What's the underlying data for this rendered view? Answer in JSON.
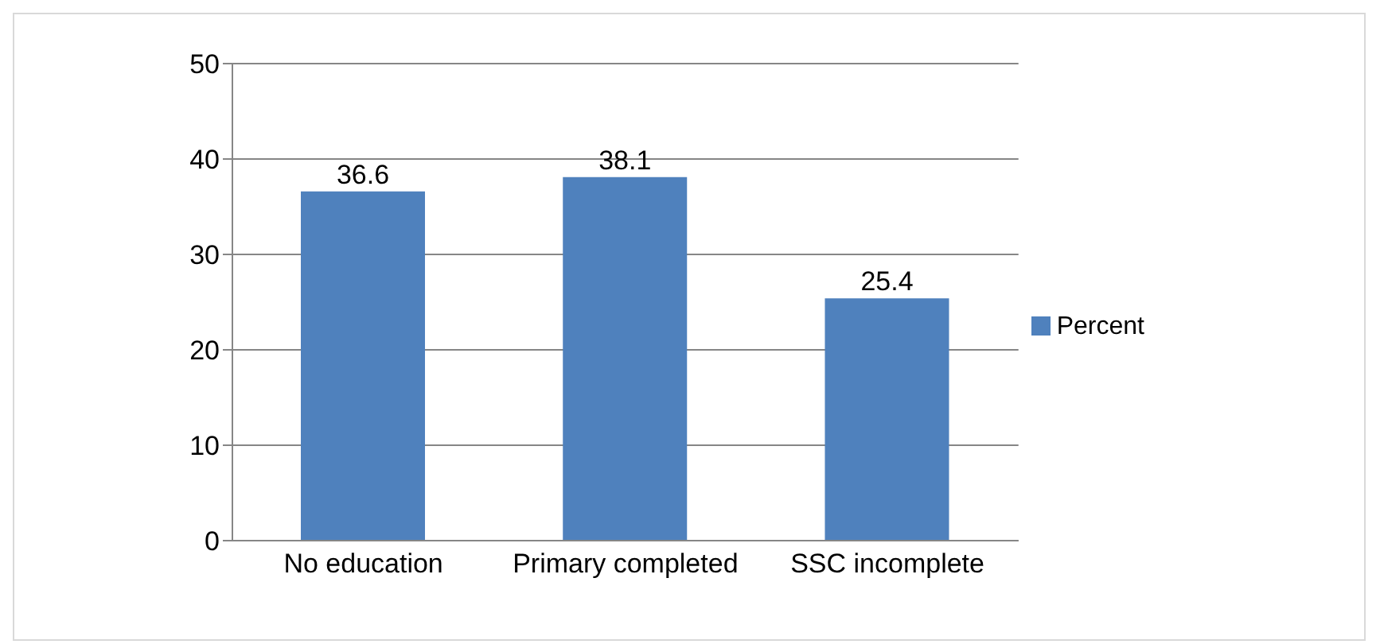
{
  "chart_data": {
    "type": "bar",
    "categories": [
      "No education",
      "Primary completed",
      "SSC incomplete"
    ],
    "series": [
      {
        "name": "Percent",
        "color": "#4f81bd",
        "values": [
          36.6,
          38.1,
          25.4
        ]
      }
    ],
    "ylim": [
      0,
      50
    ],
    "yticks": [
      0,
      10,
      20,
      30,
      40,
      50
    ],
    "grid": "y",
    "legend": "right",
    "data_labels": true
  }
}
